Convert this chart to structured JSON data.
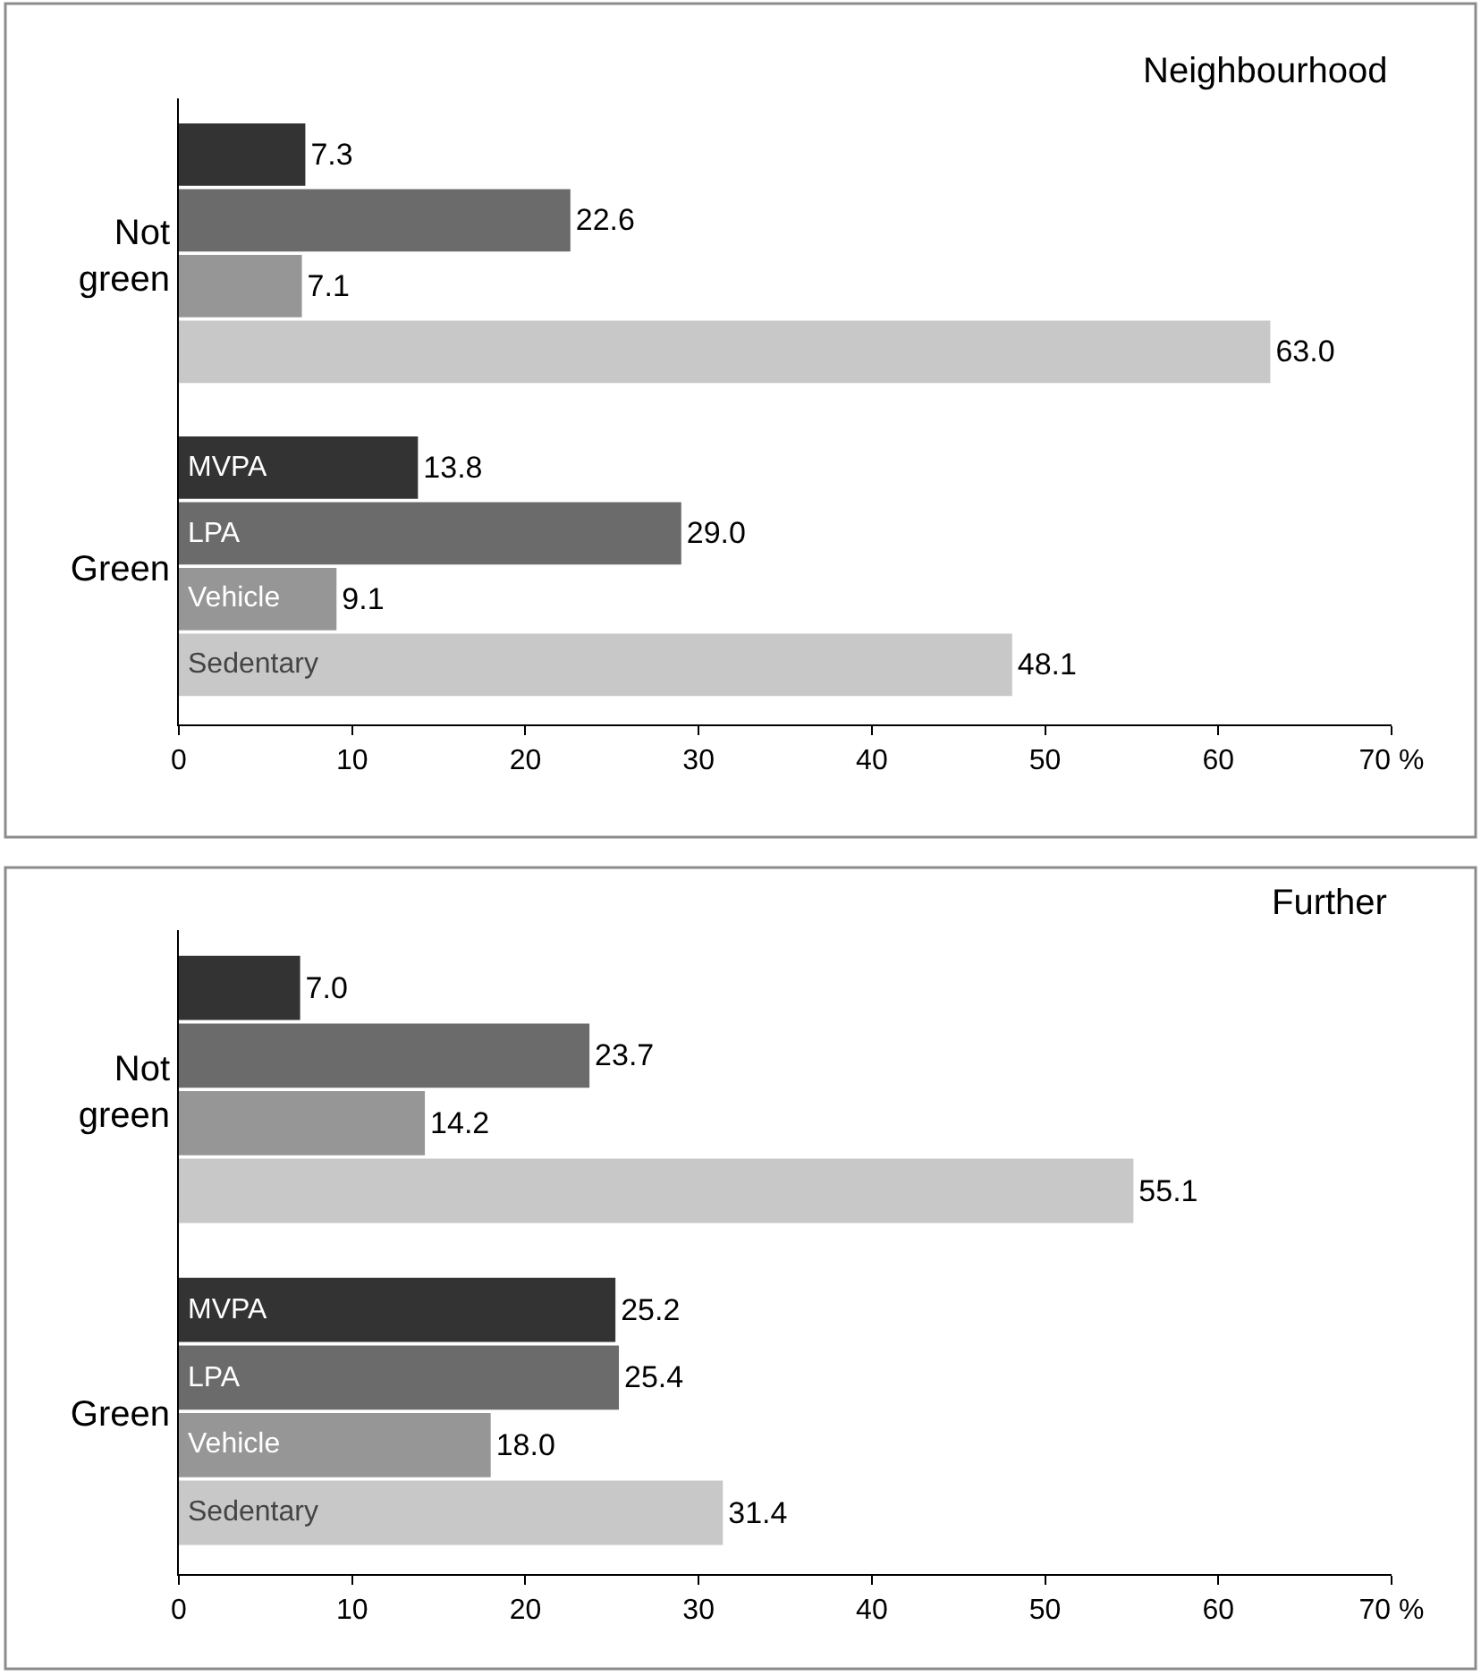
{
  "chart_data": [
    {
      "type": "bar",
      "orientation": "horizontal",
      "title": "Neighbourhood",
      "categories": [
        "Not green",
        "Green"
      ],
      "xlim": [
        0,
        70
      ],
      "xticks": [
        0,
        10,
        20,
        30,
        40,
        50,
        60,
        {
          "value": 70,
          "label": "70 %"
        }
      ],
      "series": [
        {
          "name": "MVPA",
          "color": "#333333",
          "values": [
            7.3,
            13.8
          ],
          "value_labels": [
            "7.3",
            "13.8"
          ]
        },
        {
          "name": "LPA",
          "color": "#6b6b6b",
          "values": [
            22.6,
            29.0
          ],
          "value_labels": [
            "22.6",
            "29.0"
          ]
        },
        {
          "name": "Vehicle",
          "color": "#969696",
          "values": [
            7.1,
            9.1
          ],
          "value_labels": [
            "7.1",
            "9.1"
          ]
        },
        {
          "name": "Sedentary",
          "color": "#c8c8c8",
          "values": [
            63.0,
            48.1
          ],
          "value_labels": [
            "63.0",
            "48.1"
          ]
        }
      ]
    },
    {
      "type": "bar",
      "orientation": "horizontal",
      "title": "Further",
      "categories": [
        "Not green",
        "Green"
      ],
      "xlim": [
        0,
        70
      ],
      "xticks": [
        0,
        10,
        20,
        30,
        40,
        50,
        60,
        {
          "value": 70,
          "label": "70 %"
        }
      ],
      "series": [
        {
          "name": "MVPA",
          "color": "#333333",
          "values": [
            7.0,
            25.2
          ],
          "value_labels": [
            "7.0",
            "25.2"
          ]
        },
        {
          "name": "LPA",
          "color": "#6b6b6b",
          "values": [
            23.7,
            25.4
          ],
          "value_labels": [
            "23.7",
            "25.4"
          ]
        },
        {
          "name": "Vehicle",
          "color": "#969696",
          "values": [
            14.2,
            18.0
          ],
          "value_labels": [
            "14.2",
            "18.0"
          ]
        },
        {
          "name": "Sedentary",
          "color": "#c8c8c8",
          "values": [
            55.1,
            31.4
          ],
          "value_labels": [
            "55.1",
            "31.4"
          ]
        }
      ]
    }
  ]
}
